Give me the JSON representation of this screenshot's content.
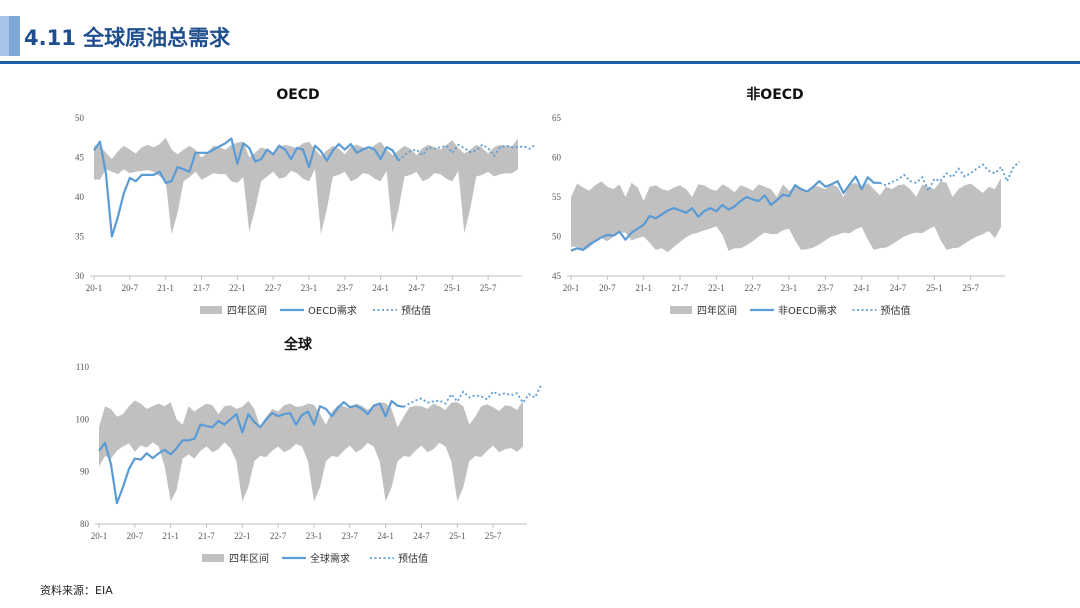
{
  "header": {
    "title": "4.11 全球原油总需求",
    "accent_color": "#1f5fa8"
  },
  "source": "资料来源：EIA",
  "legend_icons": {
    "band": "gray-band",
    "actual": "solid-line",
    "forecast": "dotted-line"
  },
  "chart_data": [
    {
      "type": "line",
      "title": "OECD",
      "ylim": [
        30,
        50
      ],
      "yticks": [
        "30",
        "35",
        "40",
        "45",
        "50"
      ],
      "xticks": [
        "20-1",
        "20-7",
        "21-1",
        "21-7",
        "22-1",
        "22-7",
        "23-1",
        "23-7",
        "24-1",
        "24-7",
        "25-1",
        "25-7"
      ],
      "x_start": "2020-01",
      "band_name": "四年区间",
      "band_color": "#c0c0c0",
      "line_color": "#5b9bd5",
      "band_high": [
        46.5,
        46.5,
        45.6,
        44.8,
        45.8,
        46.5,
        46.0,
        45.5,
        46.3,
        46.6,
        46.3,
        46.7,
        47.5,
        46.0,
        45.4,
        46.0,
        46.5,
        46.0,
        45.0,
        45.6,
        46.5,
        46.3,
        46.0,
        46.6,
        46.9,
        47.0,
        45.0,
        45.6,
        46.3,
        46.0,
        45.5,
        46.3,
        46.6,
        46.4,
        46.2,
        46.8,
        47.0,
        46.0,
        45.2,
        45.9,
        46.5,
        46.1,
        45.4,
        46.4,
        46.6,
        46.3,
        46.0,
        46.6,
        47.0,
        46.0,
        45.3,
        45.9,
        46.5,
        46.1,
        45.3,
        46.2,
        46.6,
        46.3,
        46.0,
        46.6,
        47.2,
        46.2,
        45.5,
        46.0,
        46.6,
        46.2,
        45.5,
        46.3,
        46.6,
        46.5,
        46.4,
        47.4
      ],
      "band_low": [
        42.2,
        42.2,
        43.5,
        43.2,
        42.9,
        43.5,
        43.0,
        43.2,
        43.3,
        43.4,
        43.2,
        42.6,
        42.0,
        35.3,
        38.0,
        42.0,
        42.5,
        43.2,
        42.2,
        42.6,
        43.0,
        42.9,
        42.9,
        42.0,
        41.8,
        42.5,
        35.6,
        38.5,
        42.0,
        42.6,
        43.2,
        42.3,
        42.5,
        43.3,
        43.0,
        42.3,
        42.0,
        43.5,
        35.3,
        38.5,
        42.6,
        42.8,
        43.2,
        42.0,
        42.3,
        43.0,
        42.9,
        42.3,
        42.0,
        43.3,
        35.4,
        38.5,
        42.6,
        42.8,
        43.2,
        42.0,
        42.3,
        43.0,
        42.9,
        42.3,
        42.0,
        43.3,
        35.4,
        38.5,
        42.6,
        42.8,
        43.2,
        42.6,
        42.9,
        43.0,
        43.0,
        43.5
      ],
      "actual_name": "OECD需求",
      "actual": [
        45.9,
        47.0,
        43.0,
        35.0,
        37.5,
        40.5,
        42.4,
        42.0,
        42.8,
        42.8,
        42.8,
        43.2,
        41.8,
        42.0,
        43.8,
        43.5,
        43.2,
        45.6,
        45.6,
        45.6,
        46.0,
        46.4,
        46.8,
        47.4,
        44.2,
        46.8,
        46.2,
        44.5,
        44.8,
        46.0,
        45.4,
        46.5,
        46.0,
        44.8,
        46.2,
        46.0,
        43.8,
        46.5,
        45.8,
        44.6,
        45.9,
        46.7,
        46.0,
        46.7,
        45.6,
        46.0,
        46.3,
        46.0,
        44.8,
        46.3,
        45.9,
        44.6
      ],
      "forecast_name": "预估值",
      "forecast": [
        44.6,
        45.3,
        45.8,
        46.0,
        45.3,
        46.3,
        46.1,
        46.3,
        46.5,
        45.6,
        46.6,
        46.2,
        45.7,
        45.9,
        46.6,
        46.2,
        45.2,
        46.3,
        46.5,
        46.3,
        46.3,
        46.4,
        46.1,
        46.7
      ]
    },
    {
      "type": "line",
      "title": "非OECD",
      "ylim": [
        45,
        65
      ],
      "yticks": [
        "45",
        "50",
        "55",
        "60",
        "65"
      ],
      "xticks": [
        "20-1",
        "20-7",
        "21-1",
        "21-7",
        "22-1",
        "22-7",
        "23-1",
        "23-7",
        "24-1",
        "24-7",
        "25-1",
        "25-7"
      ],
      "x_start": "2020-01",
      "band_name": "四年区间",
      "band_color": "#c0c0c0",
      "line_color": "#5b9bd5",
      "band_high": [
        55.0,
        56.7,
        56.2,
        55.8,
        56.5,
        57.0,
        56.3,
        56.0,
        56.6,
        55.0,
        56.8,
        56.2,
        54.5,
        56.3,
        56.5,
        56.0,
        55.8,
        56.2,
        56.5,
        56.0,
        55.0,
        56.6,
        56.5,
        56.0,
        55.8,
        56.6,
        56.2,
        55.6,
        56.5,
        56.2,
        55.8,
        56.6,
        56.3,
        56.0,
        55.0,
        56.6,
        55.8,
        56.3,
        56.0,
        55.5,
        56.5,
        56.3,
        56.0,
        56.6,
        56.3,
        55.0,
        56.6,
        56.8,
        56.2,
        56.8,
        56.0,
        55.2,
        56.3,
        56.0,
        56.5,
        56.6,
        56.0,
        55.0,
        56.6,
        56.3,
        56.0,
        57.0,
        56.8,
        55.0,
        56.0,
        56.5,
        56.7,
        56.1,
        55.5,
        56.3,
        56.0,
        57.4
      ],
      "band_low": [
        48.7,
        48.7,
        48.2,
        48.6,
        49.3,
        49.8,
        49.4,
        50.0,
        50.5,
        50.5,
        49.5,
        49.8,
        50.0,
        49.2,
        48.3,
        48.5,
        48.0,
        48.7,
        49.3,
        49.9,
        50.3,
        50.5,
        50.8,
        51.0,
        51.3,
        50.2,
        48.2,
        48.5,
        48.5,
        48.9,
        49.4,
        50.0,
        50.5,
        50.3,
        50.3,
        50.8,
        51.0,
        49.5,
        48.3,
        48.4,
        48.6,
        49.0,
        49.5,
        50.0,
        50.2,
        50.5,
        50.4,
        50.9,
        51.2,
        49.6,
        48.3,
        48.5,
        48.6,
        49.0,
        49.5,
        50.0,
        50.3,
        50.5,
        50.4,
        50.9,
        51.3,
        49.6,
        48.3,
        48.5,
        48.6,
        49.1,
        49.6,
        50.0,
        50.3,
        50.7,
        49.8,
        51.2
      ],
      "actual_name": "非OECD需求",
      "actual": [
        48.2,
        48.5,
        48.3,
        49.0,
        49.4,
        49.9,
        50.2,
        50.1,
        50.6,
        49.6,
        50.5,
        51.0,
        51.5,
        52.6,
        52.3,
        52.8,
        53.3,
        53.6,
        53.3,
        53.0,
        53.6,
        52.5,
        53.2,
        53.6,
        53.2,
        54.0,
        53.4,
        53.8,
        54.5,
        55.0,
        54.7,
        54.5,
        55.2,
        54.0,
        54.6,
        55.3,
        55.1,
        56.5,
        56.0,
        55.7,
        56.3,
        57.0,
        56.3,
        56.6,
        57.0,
        55.5,
        56.6,
        57.6,
        56.0,
        57.5,
        56.8,
        56.8
      ],
      "forecast_name": "预估值",
      "forecast": [
        56.8,
        56.5,
        56.9,
        57.2,
        57.8,
        57.0,
        56.8,
        57.5,
        55.8,
        57.3,
        57.0,
        58.0,
        57.5,
        58.6,
        57.6,
        58.0,
        58.6,
        59.1,
        58.3,
        58.0,
        58.8,
        57.0,
        58.7,
        59.5
      ]
    },
    {
      "type": "line",
      "title": "全球",
      "ylim": [
        80,
        110
      ],
      "yticks": [
        "80",
        "90",
        "100",
        "110"
      ],
      "xticks": [
        "20-1",
        "20-7",
        "21-1",
        "21-7",
        "22-1",
        "22-7",
        "23-1",
        "23-7",
        "24-1",
        "24-7",
        "25-1",
        "25-7"
      ],
      "x_start": "2020-01",
      "band_name": "四年区间",
      "band_color": "#c0c0c0",
      "line_color": "#5b9bd5",
      "band_high": [
        98.5,
        102.5,
        102.0,
        100.5,
        101.0,
        102.5,
        103.6,
        103.0,
        102.0,
        102.5,
        103.0,
        102.5,
        103.3,
        100.0,
        99.0,
        102.5,
        101.5,
        102.3,
        103.0,
        102.7,
        101.0,
        102.5,
        102.7,
        102.0,
        102.4,
        103.5,
        102.0,
        98.5,
        100.5,
        102.0,
        101.5,
        102.7,
        103.0,
        102.4,
        102.5,
        103.0,
        102.8,
        101.0,
        99.0,
        101.5,
        102.7,
        102.5,
        102.0,
        103.0,
        102.6,
        101.8,
        102.6,
        103.3,
        103.1,
        102.0,
        98.5,
        100.5,
        102.3,
        102.6,
        102.5,
        102.0,
        103.0,
        102.5,
        101.8,
        103.2,
        103.3,
        102.5,
        99.0,
        100.5,
        102.5,
        102.9,
        102.3,
        101.6,
        102.7,
        102.5,
        101.8,
        103.5
      ],
      "band_low": [
        91.0,
        93.0,
        92.5,
        94.0,
        94.8,
        95.4,
        93.8,
        95.0,
        94.6,
        95.6,
        94.8,
        91.0,
        84.3,
        86.5,
        92.5,
        93.3,
        92.5,
        94.0,
        94.8,
        93.7,
        94.3,
        95.6,
        94.5,
        92.0,
        84.3,
        87.0,
        92.0,
        93.0,
        92.8,
        94.0,
        94.8,
        93.7,
        94.3,
        95.3,
        94.8,
        92.0,
        84.3,
        87.0,
        92.0,
        93.0,
        92.8,
        94.0,
        95.0,
        93.7,
        94.3,
        95.5,
        94.8,
        92.0,
        84.3,
        87.0,
        92.0,
        93.0,
        92.8,
        94.0,
        95.0,
        93.7,
        94.3,
        95.5,
        94.8,
        92.0,
        84.3,
        87.0,
        92.0,
        93.0,
        92.8,
        94.0,
        95.0,
        93.7,
        94.3,
        94.5,
        93.8,
        94.8
      ],
      "actual_name": "全球需求",
      "actual": [
        94.0,
        95.5,
        91.5,
        84.0,
        87.0,
        90.5,
        92.5,
        92.3,
        93.5,
        92.6,
        93.5,
        94.2,
        93.3,
        94.5,
        96.0,
        96.0,
        96.3,
        99.0,
        98.7,
        98.5,
        99.7,
        99.0,
        100.0,
        101.0,
        97.5,
        101.0,
        99.5,
        98.5,
        100.0,
        101.2,
        100.6,
        101.0,
        101.2,
        99.0,
        100.8,
        101.5,
        99.0,
        102.5,
        102.0,
        100.6,
        102.2,
        103.3,
        102.3,
        102.6,
        102.0,
        101.0,
        102.6,
        103.0,
        100.6,
        103.5,
        102.6,
        102.4
      ],
      "forecast_name": "预估值",
      "forecast": [
        102.4,
        103.0,
        103.6,
        104.0,
        103.2,
        103.4,
        103.6,
        103.0,
        104.8,
        103.4,
        105.3,
        104.2,
        104.6,
        104.4,
        103.8,
        105.3,
        104.7,
        105.0,
        104.6,
        105.0,
        103.2,
        104.8,
        104.2,
        106.5
      ]
    }
  ]
}
